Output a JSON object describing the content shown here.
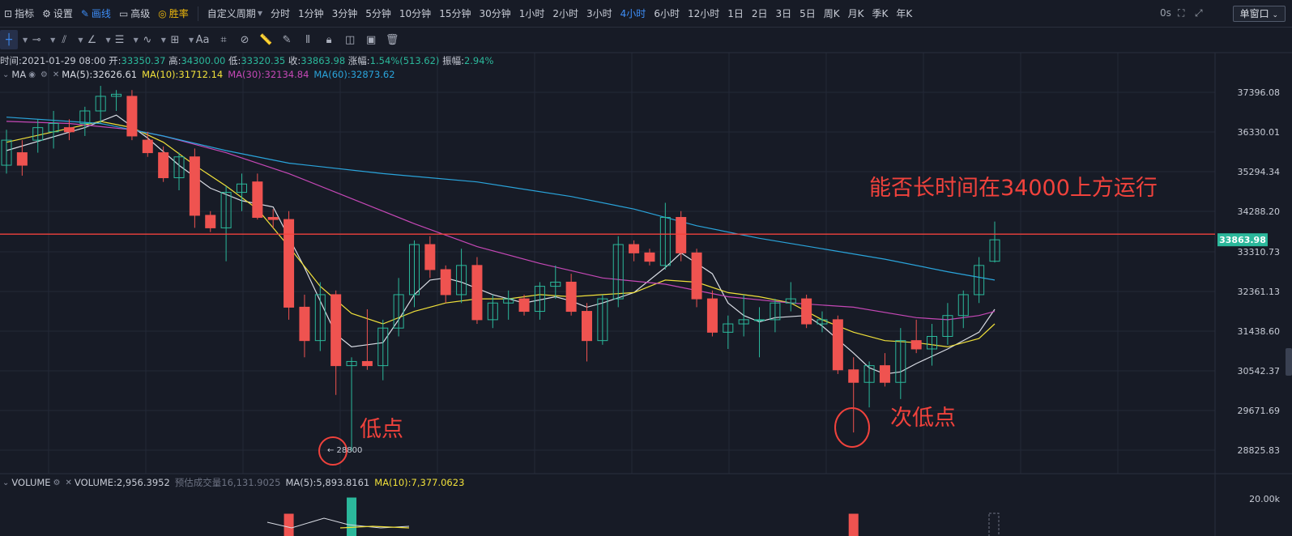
{
  "topbar": {
    "items": [
      {
        "icon": "indicator-icon",
        "label": "指标"
      },
      {
        "icon": "gear-icon",
        "label": "设置"
      },
      {
        "icon": "pencil-icon",
        "label": "画线"
      },
      {
        "icon": "window-icon",
        "label": "高级"
      },
      {
        "icon": "trophy-icon",
        "label": "胜率"
      }
    ],
    "custom_period": "自定义周期",
    "periods": [
      "分时",
      "1分钟",
      "3分钟",
      "5分钟",
      "10分钟",
      "15分钟",
      "30分钟",
      "1小时",
      "2小时",
      "3小时",
      "4小时",
      "6小时",
      "12小时",
      "1日",
      "2日",
      "3日",
      "5日",
      "周K",
      "月K",
      "季K",
      "年K"
    ],
    "active_period": "4小时",
    "countdown": "0s",
    "window_button": "单窗口"
  },
  "ohlc": {
    "time_label": "时间:",
    "time": "2021-01-29 08:00",
    "open_label": "开:",
    "open": "33350.37",
    "high_label": "高:",
    "high": "34300.00",
    "low_label": "低:",
    "low": "33320.35",
    "close_label": "收:",
    "close": "33863.98",
    "change_label": "涨幅:",
    "change": "1.54%(513.62)",
    "amp_label": "振幅:",
    "amp": "2.94%"
  },
  "ma_legend": {
    "name": "MA",
    "ma5": "MA(5):32626.61",
    "ma10": "MA(10):31712.14",
    "ma30": "MA(30):32134.84",
    "ma60": "MA(60):32873.62"
  },
  "vol_legend": {
    "name": "VOLUME",
    "volume": "VOLUME:2,956.3952",
    "est_label": "预估成交量",
    "est": "16,131.9025",
    "ma5": "MA(5):5,893.8161",
    "ma10": "MA(10):7,377.0623"
  },
  "colors": {
    "bg": "#171b26",
    "up": "#2bb89b",
    "down": "#ef5350",
    "ma5": "#d9dce4",
    "ma10": "#f0e03a",
    "ma30": "#c548b6",
    "ma60": "#2aa4db",
    "hline": "#f0423c",
    "annot": "#f0423c",
    "grid": "#232837"
  },
  "annotations": {
    "title": "能否长时间在34000上方运行",
    "low": "低点",
    "second_low": "次低点",
    "low_marker": "← 28800"
  },
  "chart_data": {
    "type": "candlestick",
    "y_axis_ticks": [
      "37396.08",
      "36330.01",
      "35294.34",
      "34288.20",
      "33310.73",
      "32361.13",
      "31438.60",
      "30542.37",
      "29671.69",
      "28825.83"
    ],
    "ylim": [
      28400,
      38000
    ],
    "current_price": "33863.98",
    "horizontal_line": 34000,
    "volume_axis_tick": "20.00k",
    "candles": [
      {
        "o": 35650,
        "h": 36500,
        "l": 35450,
        "c": 36250
      },
      {
        "o": 35950,
        "h": 36250,
        "l": 35400,
        "c": 35650
      },
      {
        "o": 36250,
        "h": 36750,
        "l": 35950,
        "c": 36550
      },
      {
        "o": 36450,
        "h": 36950,
        "l": 36050,
        "c": 36650
      },
      {
        "o": 36550,
        "h": 36750,
        "l": 36250,
        "c": 36450
      },
      {
        "o": 36650,
        "h": 37050,
        "l": 36350,
        "c": 36950
      },
      {
        "o": 36950,
        "h": 37550,
        "l": 36650,
        "c": 37300
      },
      {
        "o": 37300,
        "h": 37450,
        "l": 36950,
        "c": 37350
      },
      {
        "o": 37300,
        "h": 37450,
        "l": 36250,
        "c": 36350
      },
      {
        "o": 36250,
        "h": 36450,
        "l": 35850,
        "c": 35950
      },
      {
        "o": 35950,
        "h": 36100,
        "l": 35250,
        "c": 35350
      },
      {
        "o": 35350,
        "h": 35950,
        "l": 35050,
        "c": 35850
      },
      {
        "o": 35850,
        "h": 36050,
        "l": 34150,
        "c": 34450
      },
      {
        "o": 34450,
        "h": 34550,
        "l": 34050,
        "c": 34150
      },
      {
        "o": 34150,
        "h": 35150,
        "l": 33350,
        "c": 35000
      },
      {
        "o": 35000,
        "h": 35450,
        "l": 34550,
        "c": 35200
      },
      {
        "o": 35250,
        "h": 35450,
        "l": 34350,
        "c": 34400
      },
      {
        "o": 34400,
        "h": 34600,
        "l": 34150,
        "c": 34350
      },
      {
        "o": 34350,
        "h": 34550,
        "l": 31950,
        "c": 32250
      },
      {
        "o": 32250,
        "h": 32550,
        "l": 31050,
        "c": 31450
      },
      {
        "o": 31450,
        "h": 32850,
        "l": 31200,
        "c": 32550
      },
      {
        "o": 32550,
        "h": 32650,
        "l": 30150,
        "c": 30850
      },
      {
        "o": 30850,
        "h": 31050,
        "l": 28800,
        "c": 30950
      },
      {
        "o": 30950,
        "h": 32200,
        "l": 30750,
        "c": 30850
      },
      {
        "o": 30850,
        "h": 31950,
        "l": 30500,
        "c": 31750
      },
      {
        "o": 31750,
        "h": 32950,
        "l": 31550,
        "c": 32550
      },
      {
        "o": 32550,
        "h": 33850,
        "l": 32250,
        "c": 33750
      },
      {
        "o": 33750,
        "h": 33950,
        "l": 32950,
        "c": 33150
      },
      {
        "o": 33150,
        "h": 33250,
        "l": 32350,
        "c": 32550
      },
      {
        "o": 32550,
        "h": 33650,
        "l": 32350,
        "c": 33250
      },
      {
        "o": 33250,
        "h": 33450,
        "l": 31850,
        "c": 31950
      },
      {
        "o": 31950,
        "h": 32550,
        "l": 31750,
        "c": 32350
      },
      {
        "o": 32350,
        "h": 32650,
        "l": 31950,
        "c": 32450
      },
      {
        "o": 32450,
        "h": 32550,
        "l": 32050,
        "c": 32150
      },
      {
        "o": 32150,
        "h": 32850,
        "l": 31950,
        "c": 32750
      },
      {
        "o": 32750,
        "h": 33250,
        "l": 32450,
        "c": 32850
      },
      {
        "o": 32850,
        "h": 33050,
        "l": 32050,
        "c": 32150
      },
      {
        "o": 32150,
        "h": 32350,
        "l": 30950,
        "c": 31450
      },
      {
        "o": 31450,
        "h": 32550,
        "l": 31350,
        "c": 32450
      },
      {
        "o": 32450,
        "h": 33950,
        "l": 32250,
        "c": 33750
      },
      {
        "o": 33750,
        "h": 33850,
        "l": 33350,
        "c": 33550
      },
      {
        "o": 33550,
        "h": 33650,
        "l": 33250,
        "c": 33350
      },
      {
        "o": 33250,
        "h": 34750,
        "l": 33150,
        "c": 34400
      },
      {
        "o": 34400,
        "h": 34550,
        "l": 33350,
        "c": 33550
      },
      {
        "o": 33550,
        "h": 33650,
        "l": 32250,
        "c": 32450
      },
      {
        "o": 32450,
        "h": 32650,
        "l": 31550,
        "c": 31650
      },
      {
        "o": 31650,
        "h": 32050,
        "l": 31250,
        "c": 31850
      },
      {
        "o": 31850,
        "h": 32550,
        "l": 31550,
        "c": 31950
      },
      {
        "o": 31950,
        "h": 32250,
        "l": 31050,
        "c": 31950
      },
      {
        "o": 31950,
        "h": 32450,
        "l": 31650,
        "c": 32350
      },
      {
        "o": 32350,
        "h": 32850,
        "l": 32150,
        "c": 32450
      },
      {
        "o": 32450,
        "h": 32550,
        "l": 31750,
        "c": 31850
      },
      {
        "o": 31850,
        "h": 32150,
        "l": 31650,
        "c": 31950
      },
      {
        "o": 31950,
        "h": 32050,
        "l": 30650,
        "c": 30750
      },
      {
        "o": 30750,
        "h": 31050,
        "l": 29250,
        "c": 30450
      },
      {
        "o": 30450,
        "h": 30950,
        "l": 29850,
        "c": 30850
      },
      {
        "o": 30850,
        "h": 31150,
        "l": 30350,
        "c": 30450
      },
      {
        "o": 30450,
        "h": 31750,
        "l": 30050,
        "c": 31450
      },
      {
        "o": 31450,
        "h": 31950,
        "l": 31150,
        "c": 31250
      },
      {
        "o": 31250,
        "h": 31850,
        "l": 30850,
        "c": 31550
      },
      {
        "o": 31550,
        "h": 32350,
        "l": 31350,
        "c": 32050
      },
      {
        "o": 32050,
        "h": 32650,
        "l": 31750,
        "c": 32550
      },
      {
        "o": 32550,
        "h": 33450,
        "l": 32350,
        "c": 33250
      },
      {
        "o": 33350,
        "h": 34300,
        "l": 33320,
        "c": 33864
      }
    ],
    "ma_series": [
      {
        "name": "MA(5)",
        "color": "#d9dce4",
        "points": [
          [
            0,
            36000
          ],
          [
            5,
            36550
          ],
          [
            7,
            36850
          ],
          [
            9,
            36300
          ],
          [
            11,
            35650
          ],
          [
            13,
            35100
          ],
          [
            15,
            34800
          ],
          [
            17,
            34650
          ],
          [
            19,
            33200
          ],
          [
            21,
            31600
          ],
          [
            22,
            31300
          ],
          [
            23,
            31350
          ],
          [
            24,
            31400
          ],
          [
            25,
            31950
          ],
          [
            26,
            32550
          ],
          [
            27,
            32900
          ],
          [
            28,
            32950
          ],
          [
            29,
            32850
          ],
          [
            31,
            32550
          ],
          [
            33,
            32350
          ],
          [
            35,
            32500
          ],
          [
            36,
            32400
          ],
          [
            37,
            32250
          ],
          [
            38,
            32350
          ],
          [
            40,
            32600
          ],
          [
            42,
            33200
          ],
          [
            43,
            33550
          ],
          [
            45,
            33050
          ],
          [
            46,
            32350
          ],
          [
            47,
            32050
          ],
          [
            48,
            31900
          ],
          [
            49,
            32000
          ],
          [
            51,
            32050
          ],
          [
            52,
            31800
          ],
          [
            54,
            31150
          ],
          [
            55,
            30800
          ],
          [
            56,
            30650
          ],
          [
            57,
            30700
          ],
          [
            58,
            30900
          ],
          [
            60,
            31250
          ],
          [
            62,
            31650
          ],
          [
            63,
            32200
          ]
        ]
      },
      {
        "name": "MA(10)",
        "color": "#f0e03a",
        "points": [
          [
            0,
            36200
          ],
          [
            3,
            36450
          ],
          [
            6,
            36700
          ],
          [
            8,
            36550
          ],
          [
            10,
            36200
          ],
          [
            12,
            35650
          ],
          [
            14,
            35150
          ],
          [
            16,
            34600
          ],
          [
            18,
            33700
          ],
          [
            20,
            32750
          ],
          [
            22,
            32100
          ],
          [
            24,
            31850
          ],
          [
            26,
            32150
          ],
          [
            28,
            32350
          ],
          [
            30,
            32450
          ],
          [
            32,
            32450
          ],
          [
            34,
            32550
          ],
          [
            36,
            32500
          ],
          [
            38,
            32550
          ],
          [
            40,
            32600
          ],
          [
            42,
            32900
          ],
          [
            44,
            32850
          ],
          [
            46,
            32600
          ],
          [
            48,
            32500
          ],
          [
            50,
            32350
          ],
          [
            52,
            31950
          ],
          [
            54,
            31650
          ],
          [
            56,
            31450
          ],
          [
            58,
            31400
          ],
          [
            60,
            31300
          ],
          [
            62,
            31500
          ],
          [
            63,
            31850
          ]
        ]
      },
      {
        "name": "MA(30)",
        "color": "#c548b6",
        "points": [
          [
            0,
            36700
          ],
          [
            4,
            36650
          ],
          [
            8,
            36500
          ],
          [
            10,
            36350
          ],
          [
            14,
            35950
          ],
          [
            18,
            35450
          ],
          [
            22,
            34850
          ],
          [
            26,
            34250
          ],
          [
            30,
            33700
          ],
          [
            34,
            33300
          ],
          [
            38,
            32950
          ],
          [
            42,
            32800
          ],
          [
            46,
            32500
          ],
          [
            50,
            32350
          ],
          [
            54,
            32250
          ],
          [
            58,
            32000
          ],
          [
            60,
            31950
          ],
          [
            62,
            32050
          ],
          [
            63,
            32150
          ]
        ]
      },
      {
        "name": "MA(60)",
        "color": "#2aa4db",
        "points": [
          [
            0,
            36800
          ],
          [
            6,
            36650
          ],
          [
            10,
            36350
          ],
          [
            14,
            36000
          ],
          [
            18,
            35700
          ],
          [
            24,
            35450
          ],
          [
            30,
            35250
          ],
          [
            36,
            34900
          ],
          [
            40,
            34600
          ],
          [
            44,
            34200
          ],
          [
            48,
            33900
          ],
          [
            52,
            33650
          ],
          [
            56,
            33400
          ],
          [
            60,
            33100
          ],
          [
            63,
            32900
          ]
        ]
      }
    ],
    "volume": [
      0,
      0,
      0,
      0,
      0,
      0,
      0,
      0,
      0,
      0,
      0,
      0,
      0,
      0,
      0,
      0,
      0,
      0,
      11000,
      0,
      0,
      0,
      19000,
      0,
      0,
      0,
      0,
      0,
      0,
      0,
      0,
      0,
      0,
      0,
      0,
      0,
      0,
      0,
      0,
      0,
      0,
      0,
      0,
      0,
      0,
      0,
      0,
      0,
      0,
      0,
      0,
      0,
      0,
      0,
      11000,
      0,
      0,
      0,
      0,
      0,
      0,
      0,
      0,
      0
    ]
  }
}
